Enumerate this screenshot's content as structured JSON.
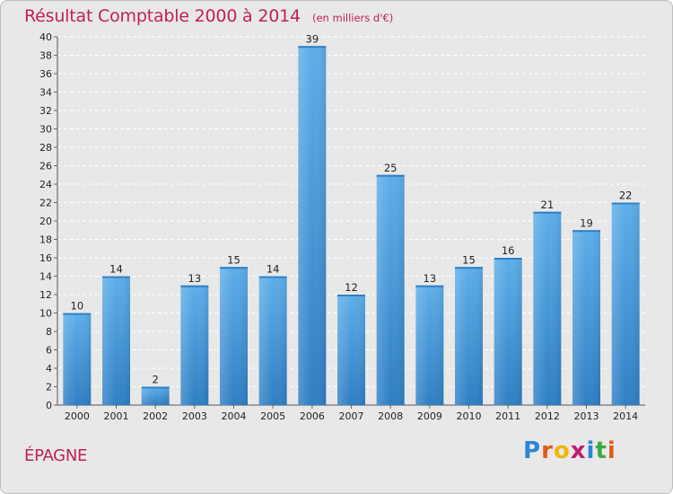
{
  "chart_data": {
    "type": "bar",
    "title": "Résultat Comptable 2000 à 2014",
    "subtitle": "(en milliers d'€)",
    "xlabel": "",
    "ylabel": "",
    "ylim": [
      0,
      40
    ],
    "yticks": [
      0,
      2,
      4,
      6,
      8,
      10,
      12,
      14,
      16,
      18,
      20,
      22,
      24,
      26,
      28,
      30,
      32,
      34,
      36,
      38,
      40
    ],
    "grid": true,
    "categories": [
      "2000",
      "2001",
      "2002",
      "2003",
      "2004",
      "2005",
      "2006",
      "2007",
      "2008",
      "2009",
      "2010",
      "2011",
      "2012",
      "2013",
      "2014"
    ],
    "values": [
      10,
      14,
      2,
      13,
      15,
      14,
      39,
      12,
      25,
      13,
      15,
      16,
      21,
      19,
      22
    ],
    "bar_color": "#5aaae6"
  },
  "place": "ÉPAGNE",
  "brand": {
    "letters": [
      "P",
      "r",
      "o",
      "x",
      "i",
      "t",
      "i"
    ],
    "colors": [
      "#2a86d8",
      "#e05b1c",
      "#f2b600",
      "#c21c6a",
      "#2a86d8",
      "#3bab3f",
      "#e05b1c"
    ]
  }
}
